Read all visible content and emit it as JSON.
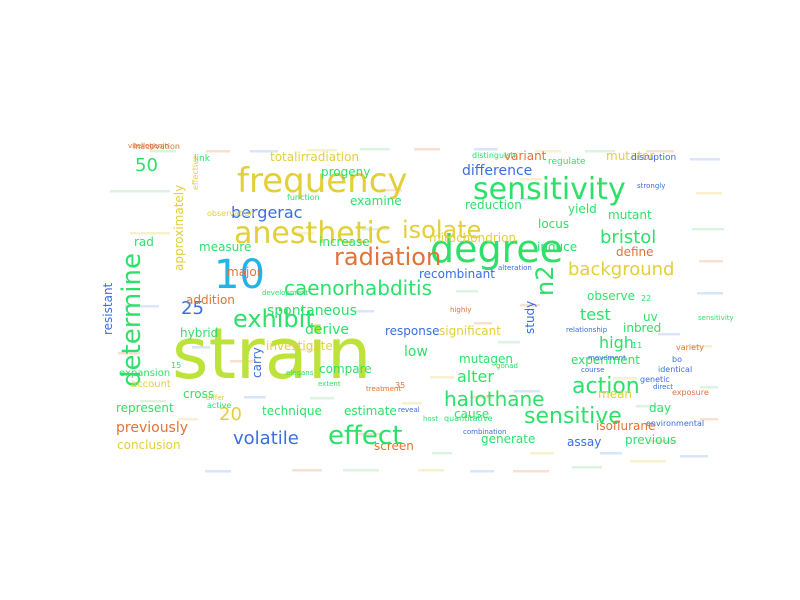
{
  "words": [
    {
      "text": "strain",
      "color": "#bde23a"
    },
    {
      "text": "10",
      "color": "#23b4e6"
    },
    {
      "text": "degree",
      "color": "#2ee06a"
    },
    {
      "text": "frequency",
      "color": "#e2cf3a"
    },
    {
      "text": "sensitivity",
      "color": "#2ee06a"
    },
    {
      "text": "anesthetic",
      "color": "#e2cf3a"
    },
    {
      "text": "determine",
      "color": "#2ee06a"
    },
    {
      "text": "effect",
      "color": "#2ee06a"
    },
    {
      "text": "isolate",
      "color": "#e2cf3a"
    },
    {
      "text": "radiation",
      "color": "#e0733a"
    },
    {
      "text": "n2",
      "color": "#2ee06a"
    },
    {
      "text": "exhibit",
      "color": "#2ee06a"
    },
    {
      "text": "action",
      "color": "#2ee06a"
    },
    {
      "text": "sensitive",
      "color": "#2ee06a"
    },
    {
      "text": "halothane",
      "color": "#2ee06a"
    },
    {
      "text": "caenorhabditis",
      "color": "#2ee06a"
    },
    {
      "text": "background",
      "color": "#e2cf3a"
    },
    {
      "text": "bristol",
      "color": "#2ee06a"
    },
    {
      "text": "volatile",
      "color": "#3a6ee0"
    },
    {
      "text": "20",
      "color": "#e2cf3a"
    },
    {
      "text": "25",
      "color": "#3a6ee0"
    },
    {
      "text": "50",
      "color": "#2ee06a"
    },
    {
      "text": "bergerac",
      "color": "#3a6ee0"
    },
    {
      "text": "high",
      "color": "#2ee06a"
    },
    {
      "text": "alter",
      "color": "#2ee06a"
    },
    {
      "text": "test",
      "color": "#2ee06a"
    },
    {
      "text": "difference",
      "color": "#3a6ee0"
    },
    {
      "text": "derive",
      "color": "#2ee06a"
    },
    {
      "text": "spontaneous",
      "color": "#2ee06a"
    },
    {
      "text": "previously",
      "color": "#e0733a"
    },
    {
      "text": "low",
      "color": "#2ee06a"
    },
    {
      "text": "mutator",
      "color": "#e2cf3a"
    },
    {
      "text": "significant",
      "color": "#e2cf3a"
    },
    {
      "text": "locus",
      "color": "#2ee06a"
    },
    {
      "text": "rad",
      "color": "#2ee06a"
    },
    {
      "text": "mutant",
      "color": "#2ee06a"
    },
    {
      "text": "examine",
      "color": "#2ee06a"
    },
    {
      "text": "measure",
      "color": "#2ee06a"
    },
    {
      "text": "compare",
      "color": "#2ee06a"
    },
    {
      "text": "mutagen",
      "color": "#2ee06a"
    },
    {
      "text": "screen",
      "color": "#e0733a"
    },
    {
      "text": "response",
      "color": "#3a6ee0"
    },
    {
      "text": "increase",
      "color": "#2ee06a"
    },
    {
      "text": "progeny",
      "color": "#2ee06a"
    },
    {
      "text": "totalirradiation",
      "color": "#e2cf3a"
    },
    {
      "text": "reduction",
      "color": "#2ee06a"
    },
    {
      "text": "recombinant",
      "color": "#3a6ee0"
    },
    {
      "text": "inbred",
      "color": "#2ee06a"
    },
    {
      "text": "observe",
      "color": "#2ee06a"
    },
    {
      "text": "experiment",
      "color": "#2ee06a"
    },
    {
      "text": "mean",
      "color": "#e2cf3a"
    },
    {
      "text": "induce",
      "color": "#2ee06a"
    },
    {
      "text": "define",
      "color": "#e0733a"
    },
    {
      "text": "yield",
      "color": "#2ee06a"
    },
    {
      "text": "variant",
      "color": "#e0733a"
    },
    {
      "text": "mitochondrion",
      "color": "#e2cf3a"
    },
    {
      "text": "major",
      "color": "#e0733a"
    },
    {
      "text": "addition",
      "color": "#e0733a"
    },
    {
      "text": "hybrid",
      "color": "#2ee06a"
    },
    {
      "text": "investigate",
      "color": "#e2cf3a"
    },
    {
      "text": "carry",
      "color": "#3a6ee0"
    },
    {
      "text": "cross",
      "color": "#2ee06a"
    },
    {
      "text": "represent",
      "color": "#2ee06a"
    },
    {
      "text": "technique",
      "color": "#2ee06a"
    },
    {
      "text": "estimate",
      "color": "#2ee06a"
    },
    {
      "text": "cause",
      "color": "#2ee06a"
    },
    {
      "text": "generate",
      "color": "#2ee06a"
    },
    {
      "text": "assay",
      "color": "#3a6ee0"
    },
    {
      "text": "previous",
      "color": "#2ee06a"
    },
    {
      "text": "day",
      "color": "#2ee06a"
    },
    {
      "text": "isoflurane",
      "color": "#e0733a"
    },
    {
      "text": "conclusion",
      "color": "#e2cf3a"
    },
    {
      "text": "study",
      "color": "#3a6ee0"
    },
    {
      "text": "resistant",
      "color": "#3a6ee0"
    },
    {
      "text": "approximately",
      "color": "#e2cf3a"
    },
    {
      "text": "uv",
      "color": "#2ee06a"
    },
    {
      "text": "expansion",
      "color": "#2ee06a"
    },
    {
      "text": "account",
      "color": "#e2cf3a"
    },
    {
      "text": "link",
      "color": "#2ee06a"
    },
    {
      "text": "regulate",
      "color": "#2ee06a"
    },
    {
      "text": "disruption",
      "color": "#3a6ee0"
    },
    {
      "text": "inactivation",
      "color": "#e0733a"
    },
    {
      "text": "distinguish",
      "color": "#2ee06a"
    },
    {
      "text": "observation",
      "color": "#e2cf3a"
    },
    {
      "text": "function",
      "color": "#2ee06a"
    },
    {
      "text": "effective",
      "color": "#e2cf3a"
    },
    {
      "text": "gonad",
      "color": "#2ee06a"
    },
    {
      "text": "relationship",
      "color": "#3a6ee0"
    },
    {
      "text": "identical",
      "color": "#3a6ee0"
    },
    {
      "text": "genetic",
      "color": "#3a6ee0"
    },
    {
      "text": "exposure",
      "color": "#e0733a"
    },
    {
      "text": "environmental",
      "color": "#3a6ee0"
    },
    {
      "text": "direct",
      "color": "#3a6ee0"
    },
    {
      "text": "course",
      "color": "#3a6ee0"
    },
    {
      "text": "host",
      "color": "#2ee06a"
    },
    {
      "text": "quantitative",
      "color": "#2ee06a"
    },
    {
      "text": "active",
      "color": "#2ee06a"
    },
    {
      "text": "differ",
      "color": "#e2cf3a"
    },
    {
      "text": "development",
      "color": "#2ee06a"
    },
    {
      "text": "treatment",
      "color": "#e0733a"
    },
    {
      "text": "highly",
      "color": "#e0733a"
    },
    {
      "text": "alteration",
      "color": "#3a6ee0"
    },
    {
      "text": "combination",
      "color": "#3a6ee0"
    },
    {
      "text": "reveal",
      "color": "#3a6ee0"
    },
    {
      "text": "movement",
      "color": "#3a6ee0"
    },
    {
      "text": "vitellogenin",
      "color": "#e0733a"
    },
    {
      "text": "strongly",
      "color": "#3a6ee0"
    },
    {
      "text": "extent",
      "color": "#2ee06a"
    },
    {
      "text": "elegans",
      "color": "#2ee06a"
    },
    {
      "text": "sensitivity",
      "color": "#2ee06a"
    },
    {
      "text": "variety",
      "color": "#e0733a"
    },
    {
      "text": "bo",
      "color": "#3a6ee0"
    },
    {
      "text": "35",
      "color": "#e0733a"
    },
    {
      "text": "22",
      "color": "#2ee06a"
    },
    {
      "text": "15",
      "color": "#2ee06a"
    },
    {
      "text": "11",
      "color": "#2ee06a"
    },
    {
      "text": "70",
      "color": "#3a6ee0"
    }
  ]
}
